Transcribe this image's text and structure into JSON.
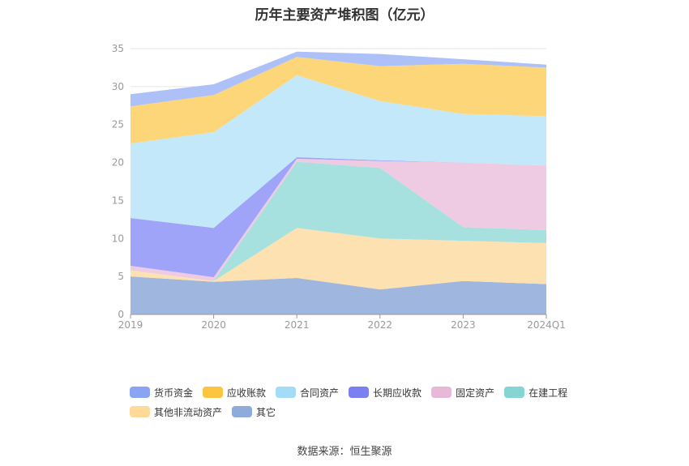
{
  "chart_data": {
    "type": "area",
    "stacked": true,
    "title": "历年主要资产堆积图（亿元）",
    "categories": [
      "2019",
      "2020",
      "2021",
      "2022",
      "2023",
      "2024Q1"
    ],
    "ylim": [
      0,
      35
    ],
    "yticks": [
      0,
      5,
      10,
      15,
      20,
      25,
      30,
      35
    ],
    "grid": true,
    "legend_position": "bottom",
    "series": [
      {
        "name": "其它",
        "color": "#9fb7de",
        "values": [
          5.0,
          4.3,
          4.8,
          3.3,
          4.4,
          4.0
        ]
      },
      {
        "name": "其他非流动资产",
        "color": "#fde1b0",
        "values": [
          0.8,
          0.1,
          6.6,
          6.7,
          5.3,
          5.4
        ]
      },
      {
        "name": "在建工程",
        "color": "#a6e1e0",
        "values": [
          0.0,
          0.0,
          8.7,
          9.3,
          1.8,
          1.7
        ]
      },
      {
        "name": "固定资产",
        "color": "#eecbe2",
        "values": [
          0.6,
          0.5,
          0.4,
          0.9,
          8.5,
          8.5
        ]
      },
      {
        "name": "长期应收款",
        "color": "#a0a4f8",
        "values": [
          6.3,
          6.5,
          0.2,
          0.1,
          0.0,
          0.0
        ]
      },
      {
        "name": "合同资产",
        "color": "#c3e8fa",
        "values": [
          9.8,
          12.6,
          10.8,
          7.8,
          6.4,
          6.5
        ]
      },
      {
        "name": "应收账款",
        "color": "#fed67a",
        "values": [
          4.9,
          4.9,
          2.4,
          4.6,
          6.6,
          6.4
        ]
      },
      {
        "name": "货币资金",
        "color": "#adc0f8",
        "values": [
          1.6,
          1.4,
          0.7,
          1.6,
          0.6,
          0.4
        ]
      }
    ]
  },
  "legend": {
    "items": [
      {
        "label": "货币资金",
        "color": "#8aa4f4"
      },
      {
        "label": "应收账款",
        "color": "#fdc43f"
      },
      {
        "label": "合同资产",
        "color": "#a3dcf6"
      },
      {
        "label": "长期应收款",
        "color": "#7b7ff0"
      },
      {
        "label": "固定资产",
        "color": "#e7b8d7"
      },
      {
        "label": "在建工程",
        "color": "#86d4d4"
      },
      {
        "label": "其他非流动资产",
        "color": "#fed998"
      },
      {
        "label": "其它",
        "color": "#8eabd9"
      }
    ]
  },
  "source": "数据来源：恒生聚源"
}
